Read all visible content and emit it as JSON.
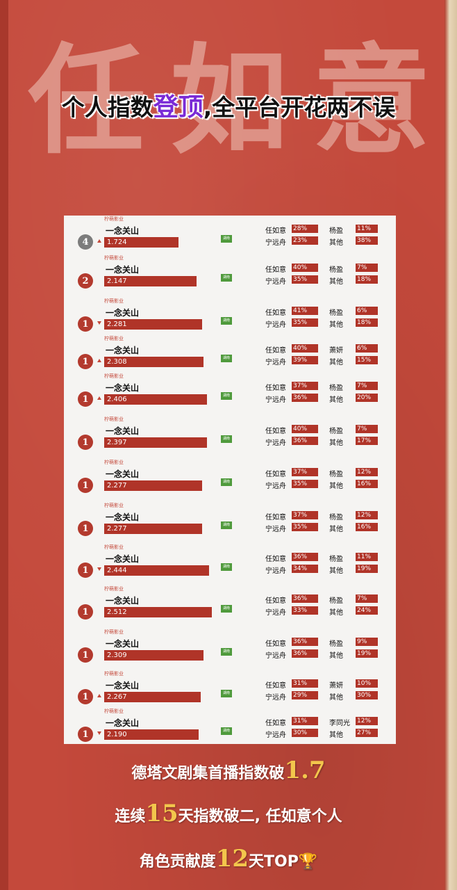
{
  "headline": {
    "prefix": "个人指数",
    "highlight": "登顶",
    "suffix": ",全平台开花两不误"
  },
  "background_text": [
    "任",
    "如",
    "意"
  ],
  "colors": {
    "background": "#c4493b",
    "bar": "#b03428",
    "highlight": "#7a2bd6",
    "accent_gold": "#f3c64c",
    "platform_badge": "#4f9a3c"
  },
  "rows": [
    {
      "company": "柠萌影业",
      "title": "一念关山",
      "rank": "4",
      "rank_style": "grey",
      "trend": "up",
      "index": "1.724",
      "index_bar": 0.63,
      "badge": "湖南",
      "r1_name": "任如意",
      "r1_val": "28%",
      "r2_name": "宁远舟",
      "r2_val": "23%",
      "r3_name": "杨盈",
      "r3_val": "11%",
      "r4_name": "其他",
      "r4_val": "38%"
    },
    {
      "company": "柠萌影业",
      "title": "一念关山",
      "rank": "2",
      "rank_style": "red",
      "trend": "none",
      "index": "2.147",
      "index_bar": 0.78,
      "badge": "湖南",
      "r1_name": "任如意",
      "r1_val": "40%",
      "r2_name": "宁远舟",
      "r2_val": "35%",
      "r3_name": "杨盈",
      "r3_val": "7%",
      "r4_name": "其他",
      "r4_val": "18%"
    },
    {
      "company": "柠萌影业",
      "title": "一念关山",
      "rank": "1",
      "rank_style": "red",
      "trend": "down",
      "index": "2.281",
      "index_bar": 0.83,
      "badge": "湖南",
      "r1_name": "任如意",
      "r1_val": "41%",
      "r2_name": "宁远舟",
      "r2_val": "35%",
      "r3_name": "杨盈",
      "r3_val": "6%",
      "r4_name": "其他",
      "r4_val": "18%"
    },
    {
      "company": "柠萌影业",
      "title": "一念关山",
      "rank": "1",
      "rank_style": "red",
      "trend": "up",
      "index": "2.308",
      "index_bar": 0.84,
      "badge": "湖南",
      "r1_name": "任如意",
      "r1_val": "40%",
      "r2_name": "宁远舟",
      "r2_val": "39%",
      "r3_name": "萧妍",
      "r3_val": "6%",
      "r4_name": "其他",
      "r4_val": "15%"
    },
    {
      "company": "柠萌影业",
      "title": "一念关山",
      "rank": "1",
      "rank_style": "red",
      "trend": "up",
      "index": "2.406",
      "index_bar": 0.87,
      "badge": "湖南",
      "r1_name": "任如意",
      "r1_val": "37%",
      "r2_name": "宁远舟",
      "r2_val": "36%",
      "r3_name": "杨盈",
      "r3_val": "7%",
      "r4_name": "其他",
      "r4_val": "20%"
    },
    {
      "company": "柠萌影业",
      "title": "一念关山",
      "rank": "1",
      "rank_style": "red",
      "trend": "none",
      "index": "2.397",
      "index_bar": 0.87,
      "badge": "湖南",
      "r1_name": "任如意",
      "r1_val": "40%",
      "r2_name": "宁远舟",
      "r2_val": "36%",
      "r3_name": "杨盈",
      "r3_val": "7%",
      "r4_name": "其他",
      "r4_val": "17%"
    },
    {
      "company": "柠萌影业",
      "title": "一念关山",
      "rank": "1",
      "rank_style": "red",
      "trend": "none",
      "index": "2.277",
      "index_bar": 0.83,
      "badge": "湖南",
      "r1_name": "任如意",
      "r1_val": "37%",
      "r2_name": "宁远舟",
      "r2_val": "35%",
      "r3_name": "杨盈",
      "r3_val": "12%",
      "r4_name": "其他",
      "r4_val": "16%"
    },
    {
      "company": "柠萌影业",
      "title": "一念关山",
      "rank": "1",
      "rank_style": "red",
      "trend": "none",
      "index": "2.277",
      "index_bar": 0.83,
      "badge": "湖南",
      "r1_name": "任如意",
      "r1_val": "37%",
      "r2_name": "宁远舟",
      "r2_val": "35%",
      "r3_name": "杨盈",
      "r3_val": "12%",
      "r4_name": "其他",
      "r4_val": "16%"
    },
    {
      "company": "柠萌影业",
      "title": "一念关山",
      "rank": "1",
      "rank_style": "red",
      "trend": "down",
      "index": "2.444",
      "index_bar": 0.89,
      "badge": "湖南",
      "r1_name": "任如意",
      "r1_val": "36%",
      "r2_name": "宁远舟",
      "r2_val": "34%",
      "r3_name": "杨盈",
      "r3_val": "11%",
      "r4_name": "其他",
      "r4_val": "19%"
    },
    {
      "company": "柠萌影业",
      "title": "一念关山",
      "rank": "1",
      "rank_style": "red",
      "trend": "none",
      "index": "2.512",
      "index_bar": 0.91,
      "badge": "湖南",
      "r1_name": "任如意",
      "r1_val": "36%",
      "r2_name": "宁远舟",
      "r2_val": "33%",
      "r3_name": "杨盈",
      "r3_val": "7%",
      "r4_name": "其他",
      "r4_val": "24%"
    },
    {
      "company": "柠萌影业",
      "title": "一念关山",
      "rank": "1",
      "rank_style": "red",
      "trend": "none",
      "index": "2.309",
      "index_bar": 0.84,
      "badge": "湖南",
      "r1_name": "任如意",
      "r1_val": "36%",
      "r2_name": "宁远舟",
      "r2_val": "36%",
      "r3_name": "杨盈",
      "r3_val": "9%",
      "r4_name": "其他",
      "r4_val": "19%"
    },
    {
      "company": "柠萌影业",
      "title": "一念关山",
      "rank": "1",
      "rank_style": "red",
      "trend": "up",
      "index": "2.267",
      "index_bar": 0.82,
      "badge": "湖南",
      "r1_name": "任如意",
      "r1_val": "31%",
      "r2_name": "宁远舟",
      "r2_val": "29%",
      "r3_name": "萧妍",
      "r3_val": "10%",
      "r4_name": "其他",
      "r4_val": "30%"
    },
    {
      "company": "柠萌影业",
      "title": "一念关山",
      "rank": "1",
      "rank_style": "red",
      "trend": "down",
      "index": "2.190",
      "index_bar": 0.8,
      "badge": "湖南",
      "r1_name": "任如意",
      "r1_val": "31%",
      "r2_name": "宁远舟",
      "r2_val": "30%",
      "r3_name": "李同光",
      "r3_val": "12%",
      "r4_name": "其他",
      "r4_val": "27%"
    }
  ],
  "footer": {
    "line1_text": "德塔文剧集首播指数破",
    "line1_num": "1.7",
    "line2_pre": "连续",
    "line2_num": "15",
    "line2_post": "天指数破二, 任如意个人",
    "line3_pre": "角色贡献度",
    "line3_num": "12",
    "line3_post": "天TOP",
    "trophy_icon": "trophy-icon"
  }
}
